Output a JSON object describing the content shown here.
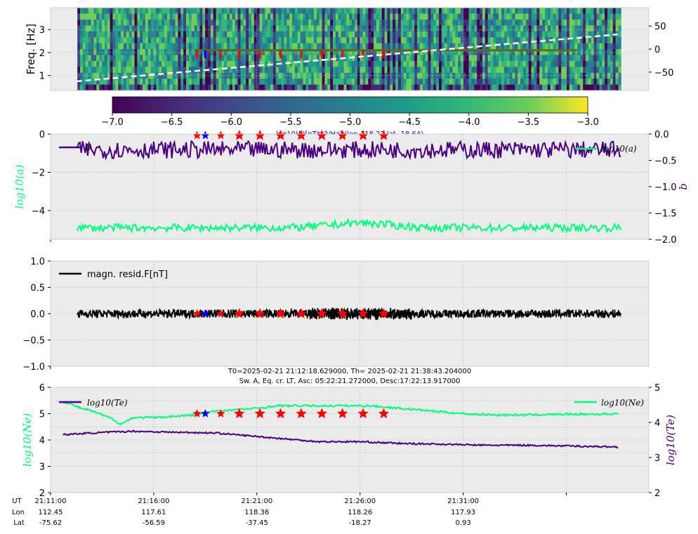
{
  "colors": {
    "panel_bg": "#ebebeb",
    "grid": "#b0b0b0",
    "green": "#00ff7f",
    "purple": "#4b0082",
    "star_red": "#ff0000",
    "star_blue": "#0000ff",
    "black": "#000000"
  },
  "chart_data": [
    {
      "type": "heatmap",
      "ylabel": "Freq. [Hz]",
      "yticks_left": [
        "1",
        "2",
        "3"
      ],
      "yticks_right": [
        "50",
        "0",
        "−50"
      ],
      "ylim": [
        0.35,
        3.95
      ],
      "right_ylim": [
        -90,
        90
      ],
      "colormap": "viridis",
      "colorbar": {
        "ticks": [
          "−7.0",
          "−6.5",
          "−6.0",
          "−5.5",
          "−5.0",
          "−4.5",
          "−4.0",
          "−3.5",
          "−3.0"
        ],
        "range": [
          -7.0,
          -3.0
        ],
        "label": "log10(F)[nT**2/Hz] (lon 118.27 lat -18.64)"
      },
      "dashed_line": {
        "x_minutes": [
          2.5,
          55
        ],
        "y_right": [
          -70,
          32
        ]
      }
    },
    {
      "type": "line",
      "ylabel_left": "log10(a)",
      "ylabel_right": "b",
      "yticks_left": [
        "0",
        "−2",
        "−4"
      ],
      "yticks_right": [
        "0.0",
        "−0.5",
        "−1.0",
        "−1.5",
        "−2.0"
      ],
      "ylim": [
        -5.5,
        0
      ],
      "right_ylim": [
        -2.0,
        0.0
      ],
      "legend": [
        "b",
        "log10(a)"
      ],
      "series": [
        {
          "name": "b",
          "color": "#4b0082",
          "mean": -0.3
        },
        {
          "name": "log10(a)",
          "color": "#00ff7f",
          "mean": -4.9
        }
      ]
    },
    {
      "type": "line",
      "yticks": [
        "1.0",
        "0.5",
        "0.0",
        "−0.5",
        "−1.0"
      ],
      "ylim": [
        -1.0,
        1.0
      ],
      "legend": [
        "magn. resid.F[nT]"
      ],
      "series": [
        {
          "name": "magn. resid.F[nT]",
          "color": "#000000",
          "amplitude": 0.08
        }
      ]
    },
    {
      "type": "line",
      "title_line1": "T0=2025-02-21 21:12:18.629000, Th= 2025-02-21 21:38:43.204000",
      "title_line2": "Sw. A, Eq. cr. LT, Asc: 05:22:21.272000, Desc:17:22:13.917000",
      "ylabel_left": "log10(Ne)",
      "ylabel_right": "log10(Te)",
      "yticks_left": [
        "6",
        "5",
        "4",
        "3",
        "2"
      ],
      "yticks_right": [
        "5",
        "4",
        "3",
        "2"
      ],
      "ylim": [
        2,
        6
      ],
      "right_ylim": [
        2,
        5
      ],
      "legend": [
        "log10(Te)",
        "log10(Ne)"
      ],
      "series": [
        {
          "name": "log10(Ne)",
          "color": "#00ff7f",
          "x_minutes": [
            1.2,
            2,
            3,
            4,
            5,
            6,
            6.8,
            8,
            10,
            14,
            16,
            18,
            20,
            22,
            25,
            28,
            31,
            34,
            37,
            40,
            43,
            46,
            50,
            53,
            55
          ],
          "y": [
            5.45,
            5.35,
            5.2,
            5.1,
            4.95,
            4.8,
            4.6,
            4.85,
            4.85,
            4.95,
            5.1,
            5.15,
            5.2,
            5.3,
            5.3,
            5.3,
            5.3,
            5.2,
            5.1,
            5.0,
            4.95,
            4.95,
            4.98,
            4.98,
            5.0
          ]
        },
        {
          "name": "log10(Te)",
          "color": "#4b0082",
          "x_minutes": [
            1.2,
            4,
            8,
            12,
            16,
            20,
            24,
            26,
            30,
            34,
            38,
            42,
            46,
            50,
            55
          ],
          "y": [
            3.65,
            3.7,
            3.75,
            3.72,
            3.7,
            3.6,
            3.5,
            3.45,
            3.45,
            3.4,
            3.38,
            3.35,
            3.35,
            3.33,
            3.3
          ]
        }
      ]
    }
  ],
  "stars": {
    "x_minutes": [
      14.2,
      15,
      16.5,
      18.3,
      20.3,
      22.3,
      24.3,
      26.3,
      28.3,
      30.3,
      32.3
    ],
    "blue_index": 1
  },
  "xaxis": {
    "xlim": [
      0,
      58
    ],
    "header": [
      "UT",
      "Lon",
      "Lat"
    ],
    "ticks": [
      {
        "minute": 0,
        "UT": "21:11:00",
        "Lon": "112.45",
        "Lat": "-75.62"
      },
      {
        "minute": 10,
        "UT": "21:16:00",
        "Lon": "117.61",
        "Lat": "-56.59"
      },
      {
        "minute": 20,
        "UT": "21:21:00",
        "Lon": "118.36",
        "Lat": "-37.45"
      },
      {
        "minute": 30,
        "UT": "21:26:00",
        "Lon": "118.26",
        "Lat": "-18.27"
      },
      {
        "minute": 40,
        "UT": "21:31:00",
        "Lon": "117.93",
        "Lat": "0.93"
      },
      {
        "minute": 50,
        "UT": "",
        "Lon": "",
        "Lat": ""
      }
    ]
  }
}
